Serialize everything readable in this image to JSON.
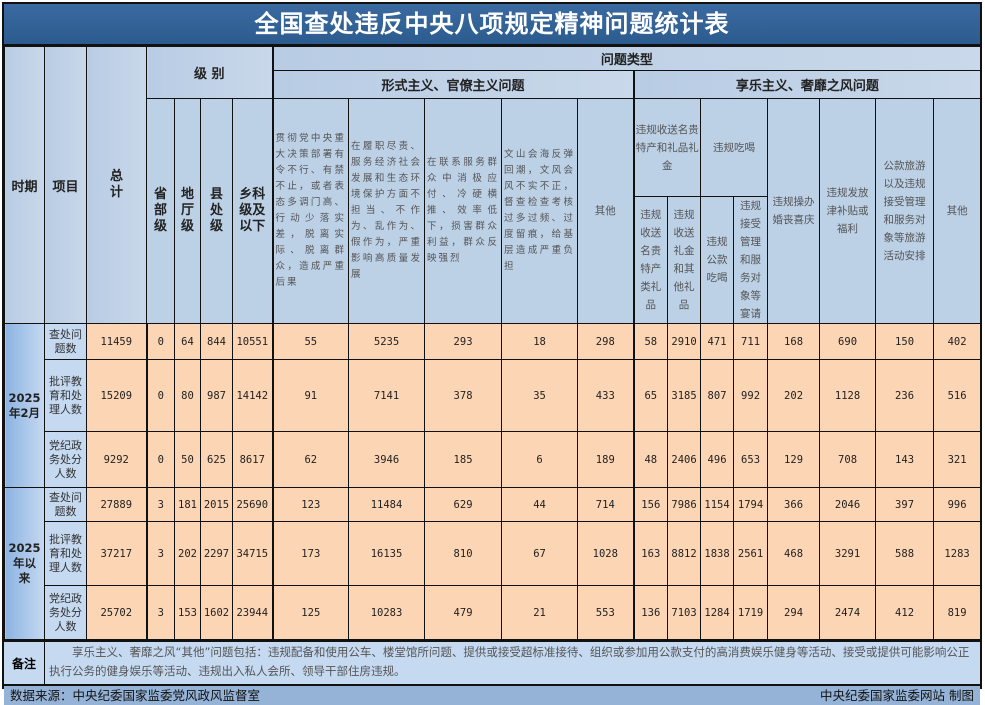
{
  "title": "全国查处违反中央八项规定精神问题统计表",
  "headers": {
    "period": "时期",
    "item": "项目",
    "total": "总计",
    "level": "级 别",
    "problem_type": "问题类型",
    "levels": [
      "省部级",
      "地厅级",
      "县处级",
      "乡科级及以下"
    ],
    "formalism": {
      "label": "形式主义、官僚主义问题",
      "columns": [
        "贯彻党中央重大决策部署有令不行、有禁不止，或者表态多调门高、行动少落实差，脱离实际、脱离群众，造成严重后果",
        "在履职尽责、服务经济社会发展和生态环境保护方面不担当、不作为、乱作为、假作为，严重影响高质量发展",
        "在联系服务群众中消极应付、冷硬横推、效率低下，损害群众利益，群众反映强烈",
        "文山会海反弹回潮，文风会风不实不正，督查检查考核过多过频、过度留痕，给基层造成严重负担",
        "其他"
      ]
    },
    "hedonism": {
      "label": "享乐主义、奢靡之风问题",
      "gifts": {
        "label": "违规收送名贵特产和礼品礼金",
        "sub": [
          "违规收送名贵特产类礼品",
          "违规收送礼金和其他礼品"
        ]
      },
      "dining": {
        "label": "违规吃喝",
        "sub": [
          "违规公款吃喝",
          "违规接受管理和服务对象等宴请"
        ]
      },
      "columns": [
        "违规操办婚丧喜庆",
        "违规发放津补贴或福利",
        "公款旅游以及违规接受管理和服务对象等旅游活动安排",
        "其他"
      ]
    }
  },
  "periods": [
    {
      "label": "2025年2月",
      "rows": [
        {
          "item": "查处问题数",
          "values": [
            "11459",
            "0",
            "64",
            "844",
            "10551",
            "55",
            "5235",
            "293",
            "18",
            "298",
            "58",
            "2910",
            "471",
            "711",
            "168",
            "690",
            "150",
            "402"
          ]
        },
        {
          "item": "批评教育和处理人数",
          "values": [
            "15209",
            "0",
            "80",
            "987",
            "14142",
            "91",
            "7141",
            "378",
            "35",
            "433",
            "65",
            "3185",
            "807",
            "992",
            "202",
            "1128",
            "236",
            "516"
          ]
        },
        {
          "item": "党纪政务处分人数",
          "values": [
            "9292",
            "0",
            "50",
            "625",
            "8617",
            "62",
            "3946",
            "185",
            "6",
            "189",
            "48",
            "2406",
            "496",
            "653",
            "129",
            "708",
            "143",
            "321"
          ]
        }
      ]
    },
    {
      "label": "2025年以来",
      "rows": [
        {
          "item": "查处问题数",
          "values": [
            "27889",
            "3",
            "181",
            "2015",
            "25690",
            "123",
            "11484",
            "629",
            "44",
            "714",
            "156",
            "7986",
            "1154",
            "1794",
            "366",
            "2046",
            "397",
            "996"
          ]
        },
        {
          "item": "批评教育和处理人数",
          "values": [
            "37217",
            "3",
            "202",
            "2297",
            "34715",
            "173",
            "16135",
            "810",
            "67",
            "1028",
            "163",
            "8812",
            "1838",
            "2561",
            "468",
            "3291",
            "588",
            "1283"
          ]
        },
        {
          "item": "党纪政务处分人数",
          "values": [
            "25702",
            "3",
            "153",
            "1602",
            "23944",
            "125",
            "10283",
            "479",
            "21",
            "553",
            "136",
            "7103",
            "1284",
            "1719",
            "294",
            "2474",
            "412",
            "819"
          ]
        }
      ]
    }
  ],
  "remark": {
    "label": "备注",
    "text": "享乐主义、奢靡之风“其他”问题包括：违规配备和使用公车、楼堂馆所问题、提供或接受超标准接待、组织或参加用公款支付的高消费娱乐健身等活动、接受或提供可能影响公正执行公务的健身娱乐等活动、违规出入私人会所、领导干部住房违规。"
  },
  "footer": {
    "source": "数据来源：中央纪委国家监委党风政风监督室",
    "credit": "中央纪委国家监委网站 制图"
  },
  "colors": {
    "title_bg": "#2c5b8e",
    "header_bg": "#b8cce4",
    "data_bg": "#fcd5b4",
    "footer_bg": "#95b3d7"
  }
}
